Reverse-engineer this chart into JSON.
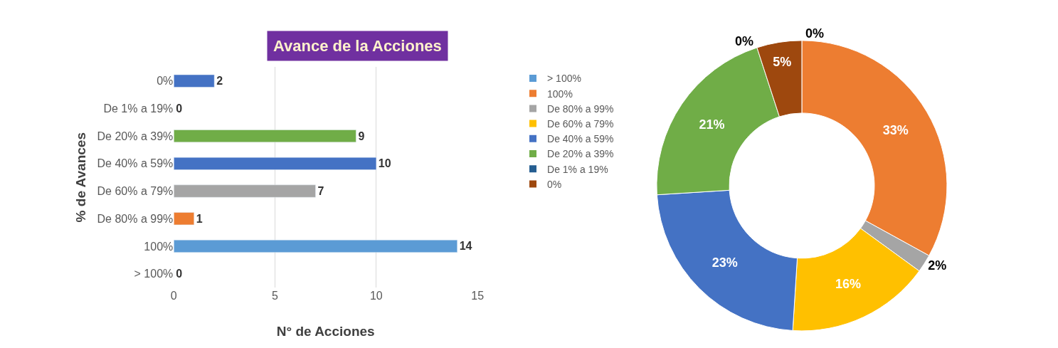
{
  "chart_data": [
    {
      "type": "bar",
      "orientation": "horizontal",
      "title": "Avance de la Acciones",
      "xlabel": "N° de Acciones",
      "ylabel": "% de Avances",
      "categories": [
        "0%",
        "De 1% a 19%",
        "De 20% a 39%",
        "De 40% a 59%",
        "De 60% a 79%",
        "De 80% a 99%",
        "100%",
        "> 100%"
      ],
      "values": [
        2,
        0,
        9,
        10,
        7,
        1,
        14,
        0
      ],
      "colors": [
        "#4472c4",
        null,
        "#70ad47",
        "#4472c4",
        "#a5a5a5",
        "#ed7d31",
        "#5b9bd5",
        null
      ],
      "xlim": [
        0,
        15
      ],
      "xticks": [
        0,
        5,
        10,
        15
      ],
      "grid": "x",
      "data_labels": true,
      "legend": false
    },
    {
      "type": "donut",
      "categories": [
        "> 100%",
        "100%",
        "De 80% a 99%",
        "De 60% a 79%",
        "De 40% a 59%",
        "De 20% a 39%",
        "De 1% a 19%",
        "0%"
      ],
      "values": [
        0,
        33,
        2,
        16,
        23,
        21,
        0,
        5
      ],
      "value_labels": [
        "0%",
        "33%",
        "2%",
        "16%",
        "23%",
        "21%",
        "0%",
        "5%"
      ],
      "colors": [
        "#5b9bd5",
        "#ed7d31",
        "#a5a5a5",
        "#ffc000",
        "#4472c4",
        "#70ad47",
        "#255e91",
        "#9e480e"
      ],
      "legend": "left"
    }
  ]
}
